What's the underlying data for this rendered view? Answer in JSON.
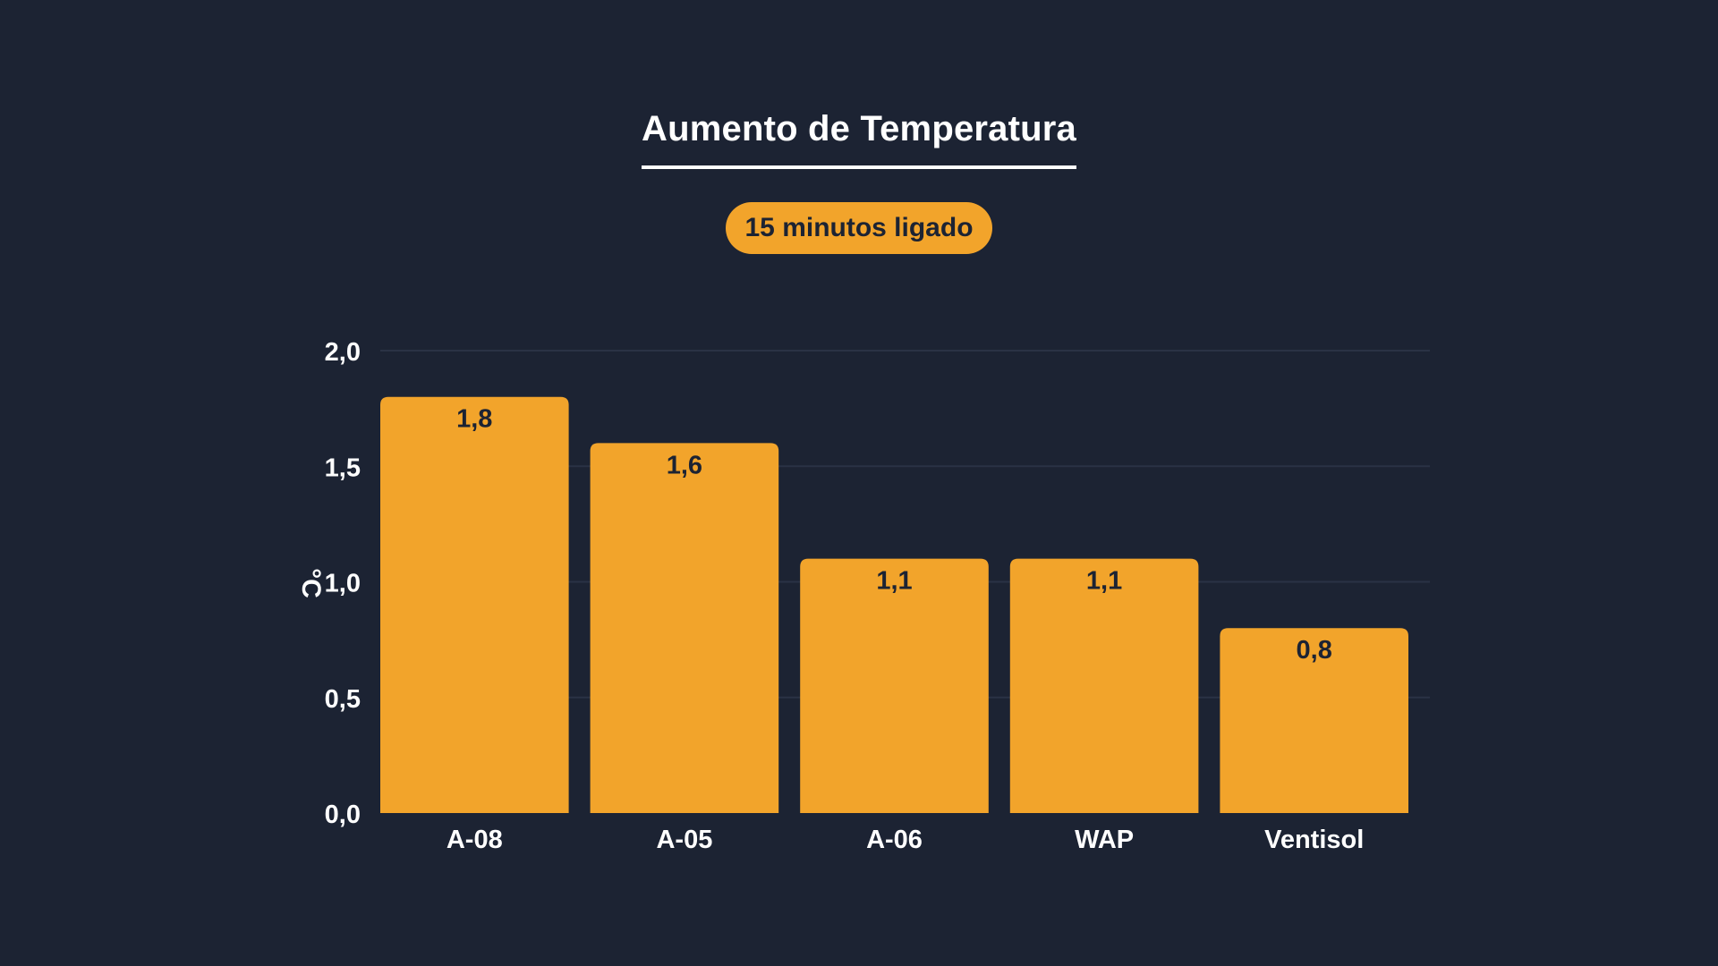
{
  "chart_data": {
    "type": "bar",
    "title": "Aumento de Temperatura",
    "subtitle": "15 minutos ligado",
    "ylabel": "°C",
    "xlabel": "",
    "categories": [
      "A-08",
      "A-05",
      "A-06",
      "WAP",
      "Ventisol"
    ],
    "values": [
      1.8,
      1.6,
      1.1,
      1.1,
      0.8
    ],
    "value_labels": [
      "1,8",
      "1,6",
      "1,1",
      "1,1",
      "0,8"
    ],
    "ylim": [
      0,
      2.0
    ],
    "yticks": [
      0,
      0.5,
      1.0,
      1.5,
      2.0
    ],
    "ytick_labels": [
      "0,0",
      "0,5",
      "1,0",
      "1,5",
      "2,0"
    ],
    "grid": true,
    "legend": "none",
    "colors": {
      "background": "#1c2333",
      "bar": "#f2a42b",
      "bar_label": "#1c2333",
      "text": "#ffffff",
      "grid": "#2a3245"
    }
  }
}
